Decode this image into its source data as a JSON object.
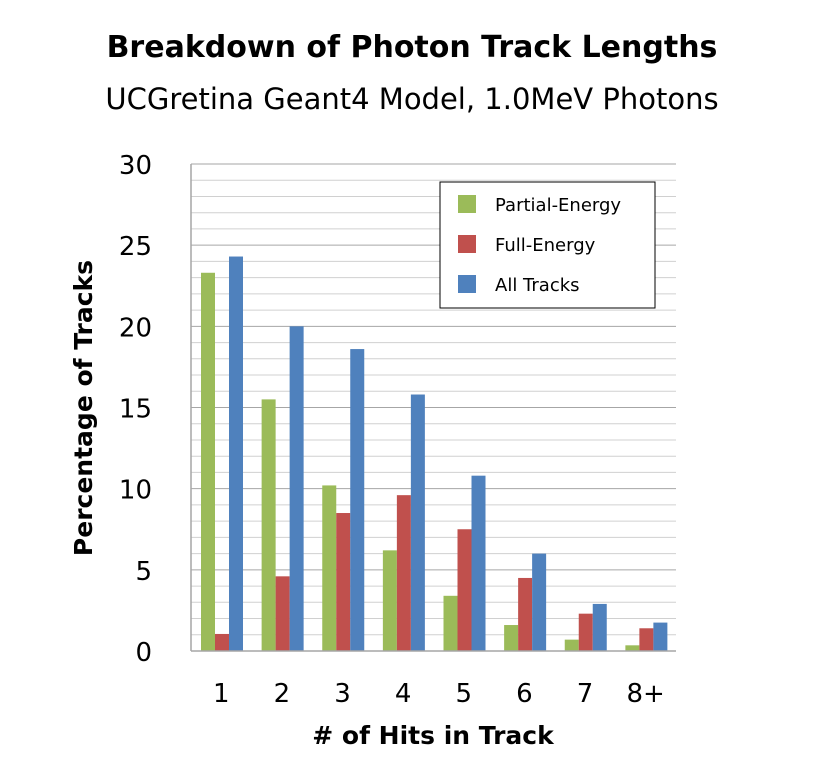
{
  "chart_data": {
    "type": "bar",
    "title": "Breakdown of Photon Track Lengths",
    "subtitle": "UCGretina Geant4 Model, 1.0MeV Photons",
    "xlabel": "# of Hits in Track",
    "ylabel": "Percentage of Tracks",
    "ylim": [
      0,
      30
    ],
    "y_ticks": [
      "0",
      "5",
      "10",
      "15",
      "20",
      "25",
      "30"
    ],
    "categories": [
      "1",
      "2",
      "3",
      "4",
      "5",
      "6",
      "7",
      "8+"
    ],
    "series": [
      {
        "name": "Partial-Energy",
        "color": "#9bbb59",
        "values": [
          23.3,
          15.5,
          10.2,
          6.2,
          3.4,
          1.6,
          0.7,
          0.35
        ]
      },
      {
        "name": "Full-Energy",
        "color": "#c0504d",
        "values": [
          1.05,
          4.6,
          8.5,
          9.6,
          7.5,
          4.5,
          2.3,
          1.4
        ]
      },
      {
        "name": "All Tracks",
        "color": "#4f81bd",
        "values": [
          24.3,
          20.0,
          18.6,
          15.8,
          10.8,
          6.0,
          2.9,
          1.75
        ]
      }
    ],
    "grid": true,
    "legend": "top-right"
  }
}
